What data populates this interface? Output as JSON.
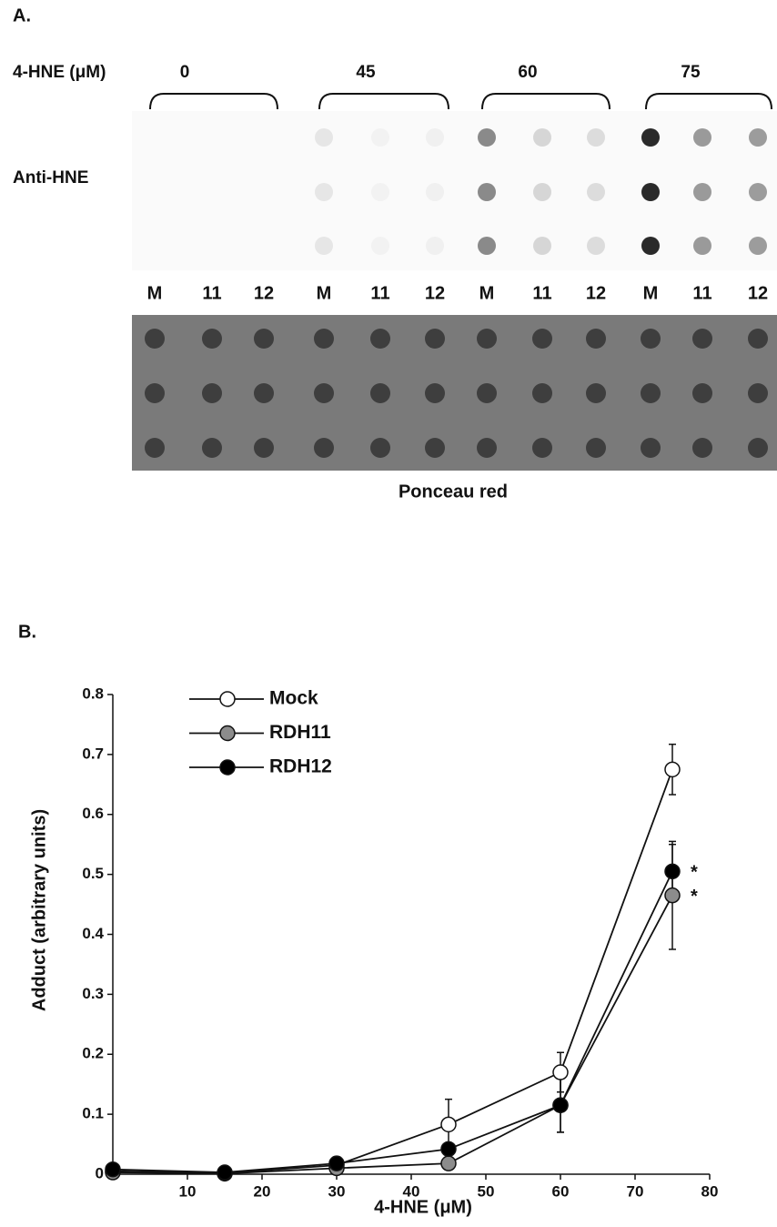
{
  "panel_a": {
    "label": "A.",
    "dose_label": "4-HNE (μM)",
    "doses": [
      "0",
      "45",
      "60",
      "75"
    ],
    "row_label": "Anti-HNE",
    "lanes": [
      "M",
      "11",
      "12",
      "M",
      "11",
      "12",
      "M",
      "11",
      "12",
      "M",
      "11",
      "12"
    ],
    "stain_label": "Ponceau red"
  },
  "chart_data": {
    "type": "line",
    "panel_label": "B.",
    "xlabel": "4-HNE (μM)",
    "ylabel": "Adduct (arbitrary units)",
    "x": [
      0,
      15,
      30,
      45,
      60,
      75
    ],
    "series": [
      {
        "name": "Mock",
        "color": "#ffffff",
        "values": [
          0.005,
          0.002,
          0.015,
          0.083,
          0.17,
          0.675
        ],
        "errors": [
          null,
          null,
          null,
          0.042,
          0.033,
          0.042
        ]
      },
      {
        "name": "RDH11",
        "color": "#8c8c8c",
        "values": [
          0.003,
          0.001,
          0.01,
          0.018,
          0.115,
          0.465
        ],
        "errors": [
          null,
          null,
          null,
          null,
          0.045,
          0.09
        ]
      },
      {
        "name": "RDH12",
        "color": "#000000",
        "values": [
          0.008,
          0.003,
          0.018,
          0.042,
          0.115,
          0.505
        ],
        "errors": [
          null,
          null,
          null,
          null,
          0.045,
          0.045
        ]
      }
    ],
    "annotations": [
      {
        "text": "*",
        "series": 2,
        "index": 5
      },
      {
        "text": "*",
        "series": 1,
        "index": 5
      }
    ],
    "xlim": [
      0,
      80
    ],
    "xticks": [
      10,
      20,
      30,
      40,
      50,
      60,
      70,
      80
    ],
    "ylim": [
      0,
      0.8
    ],
    "yticks": [
      0,
      0.1,
      0.2,
      0.3,
      0.4,
      0.5,
      0.6,
      0.7,
      0.8
    ],
    "grid": false,
    "legend": "upper left"
  }
}
